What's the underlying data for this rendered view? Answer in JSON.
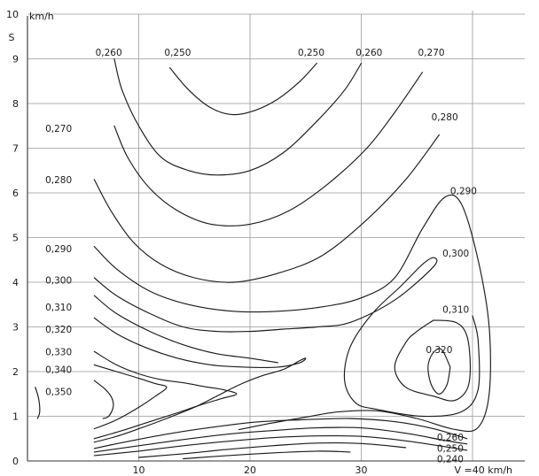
{
  "chart_data": {
    "type": "contour",
    "title": "",
    "xlabel": "V =40 km/h",
    "ylabel_symbol": "S",
    "ylabel_unit": "km/h",
    "xlim": [
      0,
      40
    ],
    "ylim": [
      0,
      10
    ],
    "grid": true,
    "x_ticks": [
      "10",
      "20",
      "30"
    ],
    "y_ticks": [
      "0",
      "1",
      "2",
      "3",
      "4",
      "5",
      "6",
      "7",
      "8",
      "9",
      "10"
    ],
    "contours": [
      {
        "level": "0,250",
        "points": [
          [
            12.8,
            8.8
          ],
          [
            14.5,
            8.3
          ],
          [
            16.5,
            7.9
          ],
          [
            18.5,
            7.75
          ],
          [
            20.5,
            7.85
          ],
          [
            22.5,
            8.1
          ],
          [
            24.5,
            8.5
          ],
          [
            26,
            8.9
          ]
        ]
      },
      {
        "level": "0,260",
        "points": [
          [
            7.8,
            9.0
          ],
          [
            8.5,
            8.3
          ],
          [
            10,
            7.5
          ],
          [
            12,
            6.8
          ],
          [
            14.5,
            6.5
          ],
          [
            17,
            6.4
          ],
          [
            20,
            6.5
          ],
          [
            23,
            6.9
          ],
          [
            26,
            7.6
          ],
          [
            28.5,
            8.3
          ],
          [
            30,
            8.9
          ]
        ]
      },
      {
        "level": "0,270",
        "points": [
          [
            7.8,
            7.5
          ],
          [
            9,
            6.8
          ],
          [
            11,
            6.1
          ],
          [
            13.5,
            5.6
          ],
          [
            16.5,
            5.3
          ],
          [
            20,
            5.3
          ],
          [
            23.5,
            5.6
          ],
          [
            27,
            6.2
          ],
          [
            30.5,
            7.0
          ],
          [
            33,
            7.8
          ],
          [
            35.5,
            8.7
          ]
        ]
      },
      {
        "level": "0,280",
        "points": [
          [
            6,
            6.3
          ],
          [
            7.5,
            5.6
          ],
          [
            9.5,
            4.9
          ],
          [
            12,
            4.4
          ],
          [
            15,
            4.1
          ],
          [
            18.5,
            4.0
          ],
          [
            22.5,
            4.2
          ],
          [
            26.5,
            4.6
          ],
          [
            30.5,
            5.4
          ],
          [
            34,
            6.3
          ],
          [
            37,
            7.3
          ]
        ]
      },
      {
        "level": "0,290",
        "points": [
          [
            6,
            4.8
          ],
          [
            8,
            4.3
          ],
          [
            11,
            3.8
          ],
          [
            14.5,
            3.5
          ],
          [
            18.5,
            3.35
          ],
          [
            22.5,
            3.35
          ],
          [
            26.5,
            3.45
          ],
          [
            30,
            3.65
          ],
          [
            33,
            4.1
          ],
          [
            35.5,
            5.2
          ],
          [
            37.5,
            5.9
          ],
          [
            39,
            5.75
          ],
          [
            40.5,
            4.5
          ],
          [
            41.5,
            3.0
          ],
          [
            41.5,
            1.5
          ],
          [
            40.5,
            0.75
          ],
          [
            38.5,
            0.7
          ],
          [
            35,
            0.95
          ],
          [
            31.5,
            1.12
          ],
          [
            28,
            1.1
          ],
          [
            25,
            0.98
          ],
          [
            22,
            0.85
          ],
          [
            19,
            0.7
          ]
        ]
      },
      {
        "level": "0,300",
        "points": [
          [
            6,
            4.1
          ],
          [
            8,
            3.7
          ],
          [
            11,
            3.3
          ],
          [
            14,
            3.0
          ],
          [
            17,
            2.9
          ],
          [
            20,
            2.9
          ],
          [
            23,
            2.95
          ],
          [
            26,
            3.0
          ],
          [
            29,
            3.1
          ],
          [
            33,
            3.6
          ],
          [
            36.5,
            4.35
          ],
          [
            36.5,
            4.55
          ],
          [
            35.5,
            4.4
          ],
          [
            33.5,
            3.9
          ],
          [
            31,
            3.3
          ],
          [
            29,
            2.55
          ],
          [
            28.5,
            1.8
          ],
          [
            29.5,
            1.3
          ],
          [
            31.5,
            1.15
          ],
          [
            35.5,
            1.0
          ],
          [
            39,
            1.1
          ],
          [
            40.5,
            1.6
          ],
          [
            40.5,
            2.7
          ],
          [
            40,
            3.25
          ]
        ]
      },
      {
        "level": "0,310",
        "points": [
          [
            6,
            3.7
          ],
          [
            8,
            3.3
          ],
          [
            11,
            2.9
          ],
          [
            14,
            2.6
          ],
          [
            17,
            2.4
          ],
          [
            20,
            2.3
          ],
          [
            22.5,
            2.2
          ]
        ]
      },
      {
        "level": "0,310",
        "points": [
          [
            36.5,
            3.15
          ],
          [
            38.5,
            3.1
          ],
          [
            39.5,
            2.8
          ],
          [
            39.8,
            2.1
          ],
          [
            39.5,
            1.6
          ],
          [
            38.3,
            1.35
          ],
          [
            36.5,
            1.45
          ],
          [
            34,
            1.65
          ],
          [
            33,
            2.1
          ],
          [
            34,
            2.65
          ],
          [
            35,
            2.9
          ],
          [
            36.5,
            3.15
          ]
        ]
      },
      {
        "level": "0,320",
        "points": [
          [
            38.0,
            2.1
          ],
          [
            37.7,
            1.7
          ],
          [
            37.0,
            1.5
          ],
          [
            36.3,
            1.7
          ],
          [
            36.0,
            2.1
          ],
          [
            36.4,
            2.4
          ],
          [
            37.2,
            2.5
          ],
          [
            38.0,
            2.1
          ]
        ]
      },
      {
        "level": "0,320",
        "points": [
          [
            6,
            3.2
          ],
          [
            8,
            2.85
          ],
          [
            10.5,
            2.55
          ],
          [
            13.5,
            2.3
          ],
          [
            16.5,
            2.15
          ],
          [
            19.5,
            2.1
          ],
          [
            22.5,
            2.1
          ],
          [
            24.5,
            2.2
          ],
          [
            25,
            2.3
          ],
          [
            24.5,
            2.25
          ],
          [
            23,
            2.05
          ],
          [
            21,
            1.9
          ],
          [
            19,
            1.7
          ],
          [
            17,
            1.45
          ],
          [
            15,
            1.2
          ],
          [
            12.5,
            0.95
          ],
          [
            10,
            0.72
          ],
          [
            8,
            0.55
          ],
          [
            6,
            0.42
          ]
        ]
      },
      {
        "level": "0,330",
        "points": [
          [
            6,
            2.45
          ],
          [
            8,
            2.15
          ],
          [
            10,
            1.95
          ],
          [
            12,
            1.82
          ],
          [
            14,
            1.75
          ],
          [
            16,
            1.66
          ],
          [
            17.5,
            1.6
          ],
          [
            18.8,
            1.5
          ],
          [
            17.5,
            1.4
          ],
          [
            15.5,
            1.25
          ],
          [
            13.5,
            1.08
          ],
          [
            11,
            0.88
          ],
          [
            8.5,
            0.68
          ],
          [
            6,
            0.5
          ]
        ]
      },
      {
        "level": "0,340",
        "points": [
          [
            6,
            2.15
          ],
          [
            8,
            2.0
          ],
          [
            10,
            1.85
          ],
          [
            11.5,
            1.73
          ],
          [
            12.5,
            1.65
          ],
          [
            11.5,
            1.45
          ],
          [
            10,
            1.2
          ],
          [
            8,
            0.92
          ],
          [
            6,
            0.72
          ]
        ]
      },
      {
        "level": "0,350",
        "points": [
          [
            6,
            1.8
          ],
          [
            7,
            1.6
          ],
          [
            7.6,
            1.4
          ],
          [
            7.7,
            1.2
          ],
          [
            7.3,
            1.0
          ],
          [
            6.8,
            0.95
          ]
        ]
      },
      {
        "level": "0,350",
        "points": [
          [
            0.7,
            1.65
          ],
          [
            1.0,
            1.4
          ],
          [
            1.1,
            1.1
          ],
          [
            0.9,
            0.95
          ]
        ]
      },
      {
        "level": "0,260",
        "points": [
          [
            6,
            0.28
          ],
          [
            9.5,
            0.46
          ],
          [
            13,
            0.62
          ],
          [
            16.5,
            0.75
          ],
          [
            20.5,
            0.87
          ],
          [
            24.5,
            0.92
          ],
          [
            29,
            0.95
          ],
          [
            33,
            0.88
          ],
          [
            36.5,
            0.72
          ],
          [
            39.5,
            0.5
          ]
        ]
      },
      {
        "level": "0,250",
        "points": [
          [
            6,
            0.2
          ],
          [
            10,
            0.34
          ],
          [
            14,
            0.48
          ],
          [
            18,
            0.6
          ],
          [
            22,
            0.68
          ],
          [
            26,
            0.74
          ],
          [
            30,
            0.74
          ],
          [
            34,
            0.62
          ],
          [
            37.5,
            0.46
          ],
          [
            39.5,
            0.38
          ]
        ]
      },
      {
        "level": "0,240",
        "points": [
          [
            6,
            0.12
          ],
          [
            10,
            0.22
          ],
          [
            14,
            0.34
          ],
          [
            18,
            0.44
          ],
          [
            22,
            0.52
          ],
          [
            26,
            0.56
          ],
          [
            30,
            0.55
          ],
          [
            34,
            0.45
          ],
          [
            37.5,
            0.32
          ],
          [
            39.5,
            0.24
          ]
        ]
      },
      {
        "points": [
          [
            10,
            0.08
          ],
          [
            14,
            0.16
          ],
          [
            18,
            0.26
          ],
          [
            22,
            0.34
          ],
          [
            26,
            0.4
          ],
          [
            30,
            0.39
          ],
          [
            34,
            0.3
          ]
        ]
      },
      {
        "points": [
          [
            14,
            0.05
          ],
          [
            18,
            0.12
          ],
          [
            22,
            0.18
          ],
          [
            26,
            0.22
          ],
          [
            29,
            0.2
          ]
        ]
      }
    ],
    "labels": [
      {
        "text": "0,260",
        "x": 7.3,
        "y": 9.15
      },
      {
        "text": "0,250",
        "x": 13.5,
        "y": 9.15
      },
      {
        "text": "0,250",
        "x": 25.5,
        "y": 9.15
      },
      {
        "text": "0,260",
        "x": 30.7,
        "y": 9.15
      },
      {
        "text": "0,270",
        "x": 36.3,
        "y": 9.15
      },
      {
        "text": "0,270",
        "x": 2.8,
        "y": 7.45
      },
      {
        "text": "0,280",
        "x": 37.5,
        "y": 7.7
      },
      {
        "text": "0,280",
        "x": 2.8,
        "y": 6.3
      },
      {
        "text": "0,290",
        "x": 39.2,
        "y": 6.05
      },
      {
        "text": "0,290",
        "x": 2.8,
        "y": 4.75
      },
      {
        "text": "0,300",
        "x": 38.5,
        "y": 4.65
      },
      {
        "text": "0,300",
        "x": 2.8,
        "y": 4.05
      },
      {
        "text": "0,310",
        "x": 2.8,
        "y": 3.45
      },
      {
        "text": "0,310",
        "x": 38.5,
        "y": 3.4
      },
      {
        "text": "0,320",
        "x": 2.8,
        "y": 2.95
      },
      {
        "text": "0,330",
        "x": 2.8,
        "y": 2.45
      },
      {
        "text": "0,340",
        "x": 2.8,
        "y": 2.05
      },
      {
        "text": "0,320",
        "x": 37.0,
        "y": 2.5
      },
      {
        "text": "0,350",
        "x": 2.8,
        "y": 1.55
      },
      {
        "text": "0,260",
        "x": 38.0,
        "y": 0.53
      },
      {
        "text": "0,250",
        "x": 38.0,
        "y": 0.29
      },
      {
        "text": "0,240",
        "x": 38.0,
        "y": 0.05
      }
    ]
  }
}
